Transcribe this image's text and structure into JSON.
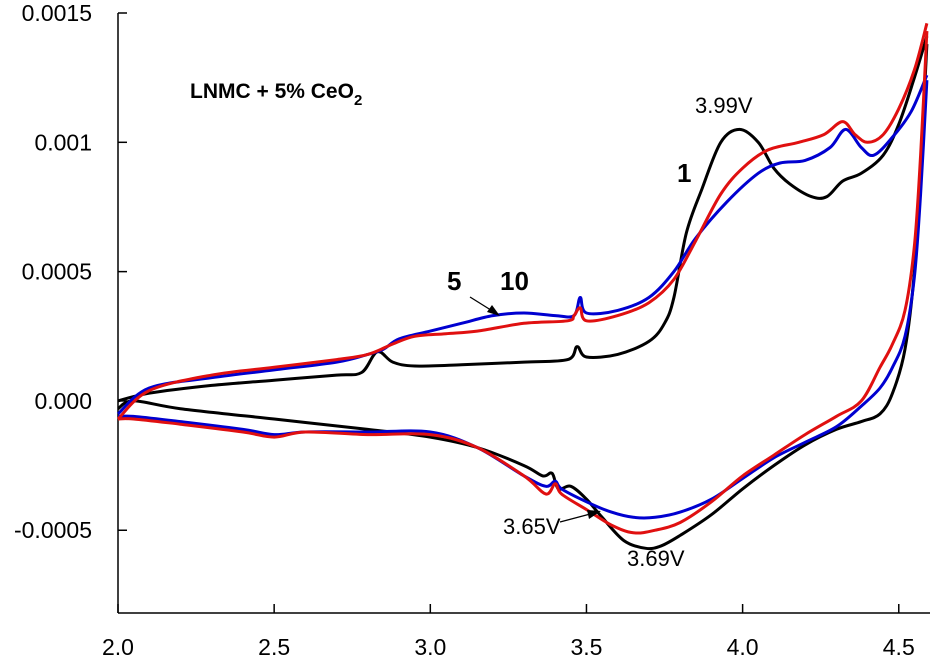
{
  "chart_data": {
    "type": "line",
    "title": "",
    "xlabel": "",
    "ylabel": "",
    "xlim": [
      2.0,
      4.6
    ],
    "ylim": [
      -0.00082,
      0.0015
    ],
    "grid": false,
    "x_ticks": [
      2.0,
      2.5,
      3.0,
      3.5,
      4.0,
      4.5
    ],
    "x_tick_labels": [
      "2.0",
      "2.5",
      "3.0",
      "3.5",
      "4.0",
      "4.5"
    ],
    "y_ticks": [
      -0.0005,
      0.0,
      0.0005,
      0.001,
      0.0015
    ],
    "y_tick_labels": [
      "-0.0005",
      "0.000",
      "0.0005",
      "0.001",
      "0.0015"
    ],
    "inset_label": {
      "main": "LNMC + 5% CeO",
      "subscript": "2"
    },
    "series": [
      {
        "color": "#000000",
        "label": "1",
        "anodic": [
          [
            2.0,
            0.0
          ],
          [
            2.1,
            3e-05
          ],
          [
            2.3,
            6e-05
          ],
          [
            2.5,
            8e-05
          ],
          [
            2.7,
            0.0001
          ],
          [
            2.78,
            0.00011
          ],
          [
            2.83,
            0.00019
          ],
          [
            2.88,
            0.00015
          ],
          [
            2.95,
            0.000135
          ],
          [
            3.1,
            0.00014
          ],
          [
            3.3,
            0.00015
          ],
          [
            3.44,
            0.00016
          ],
          [
            3.47,
            0.00021
          ],
          [
            3.5,
            0.00017
          ],
          [
            3.6,
            0.00018
          ],
          [
            3.7,
            0.00023
          ],
          [
            3.75,
            0.0003
          ],
          [
            3.78,
            0.0004
          ],
          [
            3.82,
            0.00065
          ],
          [
            3.87,
            0.00082
          ],
          [
            3.93,
            0.001
          ],
          [
            3.99,
            0.00105
          ],
          [
            4.05,
            0.001
          ],
          [
            4.1,
            0.0009
          ],
          [
            4.15,
            0.00084
          ],
          [
            4.22,
            0.00079
          ],
          [
            4.27,
            0.00079
          ],
          [
            4.32,
            0.00085
          ],
          [
            4.38,
            0.00088
          ],
          [
            4.45,
            0.00095
          ],
          [
            4.5,
            0.00107
          ],
          [
            4.55,
            0.00125
          ],
          [
            4.59,
            0.00141
          ]
        ],
        "cathodic": [
          [
            4.59,
            0.00138
          ],
          [
            4.57,
            0.0009
          ],
          [
            4.55,
            0.0005
          ],
          [
            4.52,
            0.0002
          ],
          [
            4.48,
            3e-05
          ],
          [
            4.44,
            -5e-05
          ],
          [
            4.38,
            -8e-05
          ],
          [
            4.3,
            -0.00011
          ],
          [
            4.2,
            -0.00017
          ],
          [
            4.1,
            -0.00025
          ],
          [
            4.0,
            -0.00034
          ],
          [
            3.9,
            -0.00044
          ],
          [
            3.8,
            -0.00052
          ],
          [
            3.74,
            -0.00056
          ],
          [
            3.69,
            -0.00057
          ],
          [
            3.62,
            -0.00054
          ],
          [
            3.55,
            -0.00045
          ],
          [
            3.5,
            -0.00038
          ],
          [
            3.45,
            -0.00033
          ],
          [
            3.41,
            -0.00034
          ],
          [
            3.39,
            -0.00028
          ],
          [
            3.36,
            -0.00029
          ],
          [
            3.3,
            -0.00025
          ],
          [
            3.15,
            -0.00018
          ],
          [
            3.0,
            -0.00014
          ],
          [
            2.8,
            -0.00011
          ],
          [
            2.5,
            -7e-05
          ],
          [
            2.2,
            -3e-05
          ],
          [
            2.05,
            0.0
          ],
          [
            2.0,
            -3e-05
          ]
        ]
      },
      {
        "color": "#0000d0",
        "label": "5",
        "anodic": [
          [
            2.0,
            -5e-05
          ],
          [
            2.1,
            5e-05
          ],
          [
            2.3,
            9e-05
          ],
          [
            2.5,
            0.00012
          ],
          [
            2.7,
            0.00015
          ],
          [
            2.8,
            0.00018
          ],
          [
            2.85,
            0.0002
          ],
          [
            2.9,
            0.00024
          ],
          [
            3.0,
            0.00027
          ],
          [
            3.1,
            0.0003
          ],
          [
            3.2,
            0.00033
          ],
          [
            3.3,
            0.00034
          ],
          [
            3.4,
            0.00033
          ],
          [
            3.46,
            0.00033
          ],
          [
            3.48,
            0.0004
          ],
          [
            3.5,
            0.00034
          ],
          [
            3.6,
            0.00035
          ],
          [
            3.7,
            0.0004
          ],
          [
            3.78,
            0.0005
          ],
          [
            3.85,
            0.00063
          ],
          [
            3.95,
            0.00077
          ],
          [
            4.05,
            0.00088
          ],
          [
            4.12,
            0.00092
          ],
          [
            4.2,
            0.00093
          ],
          [
            4.28,
            0.00098
          ],
          [
            4.33,
            0.00105
          ],
          [
            4.38,
            0.00098
          ],
          [
            4.42,
            0.00095
          ],
          [
            4.48,
            0.00102
          ],
          [
            4.54,
            0.00112
          ],
          [
            4.59,
            0.00126
          ]
        ],
        "cathodic": [
          [
            4.59,
            0.00124
          ],
          [
            4.57,
            0.0008
          ],
          [
            4.55,
            0.00048
          ],
          [
            4.52,
            0.00025
          ],
          [
            4.48,
            0.00013
          ],
          [
            4.44,
            5e-05
          ],
          [
            4.38,
            -2e-05
          ],
          [
            4.3,
            -0.0001
          ],
          [
            4.2,
            -0.00016
          ],
          [
            4.1,
            -0.00022
          ],
          [
            4.0,
            -0.0003
          ],
          [
            3.9,
            -0.00038
          ],
          [
            3.8,
            -0.00043
          ],
          [
            3.72,
            -0.00045
          ],
          [
            3.65,
            -0.00045
          ],
          [
            3.58,
            -0.00043
          ],
          [
            3.5,
            -0.00039
          ],
          [
            3.42,
            -0.00034
          ],
          [
            3.4,
            -0.00031
          ],
          [
            3.37,
            -0.00033
          ],
          [
            3.3,
            -0.00029
          ],
          [
            3.15,
            -0.00018
          ],
          [
            3.0,
            -0.00012
          ],
          [
            2.8,
            -0.00012
          ],
          [
            2.6,
            -0.00012
          ],
          [
            2.5,
            -0.00013
          ],
          [
            2.4,
            -0.00011
          ],
          [
            2.2,
            -8e-05
          ],
          [
            2.05,
            -6e-05
          ],
          [
            2.0,
            -6e-05
          ]
        ]
      },
      {
        "color": "#e01010",
        "label": "10",
        "anodic": [
          [
            2.0,
            -7e-05
          ],
          [
            2.1,
            4e-05
          ],
          [
            2.3,
            0.0001
          ],
          [
            2.5,
            0.00013
          ],
          [
            2.7,
            0.00016
          ],
          [
            2.8,
            0.00018
          ],
          [
            2.88,
            0.00022
          ],
          [
            2.95,
            0.00025
          ],
          [
            3.05,
            0.00026
          ],
          [
            3.15,
            0.00027
          ],
          [
            3.3,
            0.0003
          ],
          [
            3.44,
            0.00031
          ],
          [
            3.46,
            0.00033
          ],
          [
            3.48,
            0.00036
          ],
          [
            3.5,
            0.00031
          ],
          [
            3.6,
            0.00033
          ],
          [
            3.7,
            0.00038
          ],
          [
            3.78,
            0.00047
          ],
          [
            3.85,
            0.00062
          ],
          [
            3.93,
            0.0008
          ],
          [
            4.0,
            0.0009
          ],
          [
            4.08,
            0.00097
          ],
          [
            4.18,
            0.001
          ],
          [
            4.26,
            0.00103
          ],
          [
            4.32,
            0.00108
          ],
          [
            4.36,
            0.00103
          ],
          [
            4.4,
            0.001
          ],
          [
            4.45,
            0.00103
          ],
          [
            4.5,
            0.00113
          ],
          [
            4.55,
            0.00128
          ],
          [
            4.59,
            0.00146
          ]
        ],
        "cathodic": [
          [
            4.59,
            0.00143
          ],
          [
            4.57,
            0.00095
          ],
          [
            4.55,
            0.0006
          ],
          [
            4.52,
            0.00035
          ],
          [
            4.48,
            0.00022
          ],
          [
            4.44,
            0.00013
          ],
          [
            4.38,
            0.0
          ],
          [
            4.3,
            -6e-05
          ],
          [
            4.2,
            -0.00013
          ],
          [
            4.1,
            -0.00021
          ],
          [
            4.0,
            -0.00029
          ],
          [
            3.9,
            -0.00039
          ],
          [
            3.8,
            -0.00047
          ],
          [
            3.72,
            -0.0005
          ],
          [
            3.65,
            -0.00051
          ],
          [
            3.58,
            -0.00048
          ],
          [
            3.5,
            -0.00042
          ],
          [
            3.42,
            -0.00036
          ],
          [
            3.4,
            -0.00032
          ],
          [
            3.37,
            -0.00036
          ],
          [
            3.3,
            -0.00029
          ],
          [
            3.15,
            -0.00018
          ],
          [
            3.0,
            -0.00013
          ],
          [
            2.8,
            -0.00013
          ],
          [
            2.6,
            -0.00012
          ],
          [
            2.5,
            -0.00014
          ],
          [
            2.4,
            -0.00012
          ],
          [
            2.2,
            -9e-05
          ],
          [
            2.05,
            -7e-05
          ],
          [
            2.0,
            -7e-05
          ]
        ]
      }
    ],
    "annotations": [
      {
        "text": "3.99V",
        "x": 3.99,
        "y": 0.00105
      },
      {
        "text": "3.65V",
        "x": 3.65,
        "y": -0.00052
      },
      {
        "text": "3.69V",
        "x": 3.69,
        "y": -0.00057
      },
      {
        "text": "1",
        "x": 3.85,
        "y": 0.00085
      },
      {
        "text": "5",
        "x": 3.22,
        "y": 0.00035
      },
      {
        "text": "10",
        "x": 3.3,
        "y": 0.00032
      }
    ]
  }
}
